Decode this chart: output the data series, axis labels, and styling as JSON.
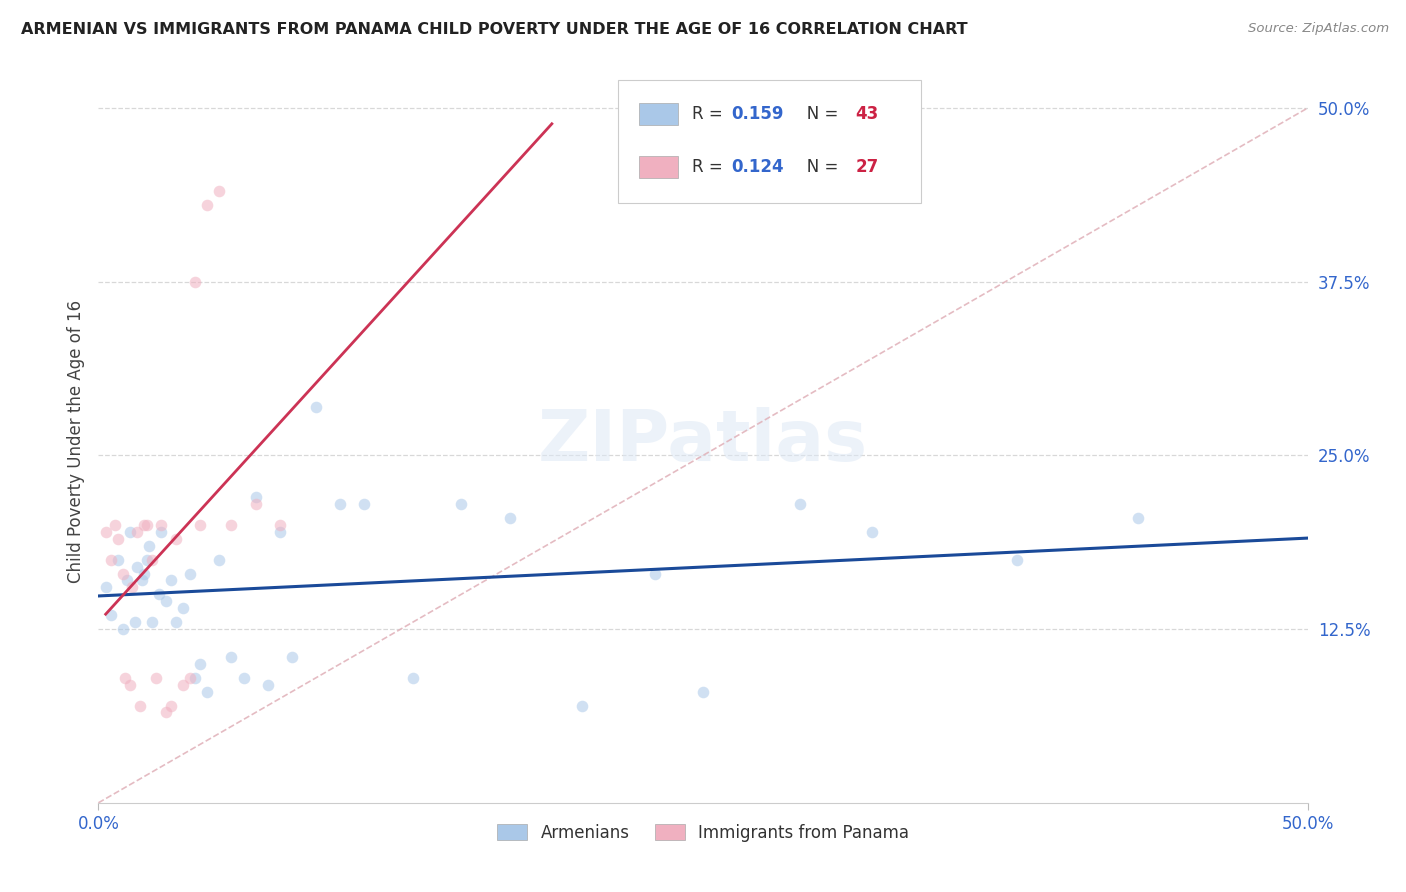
{
  "title": "ARMENIAN VS IMMIGRANTS FROM PANAMA CHILD POVERTY UNDER THE AGE OF 16 CORRELATION CHART",
  "source": "Source: ZipAtlas.com",
  "ylabel": "Child Poverty Under the Age of 16",
  "xlim": [
    0,
    0.5
  ],
  "ylim": [
    0,
    0.52
  ],
  "right_ytick_labels": [
    "12.5%",
    "25.0%",
    "37.5%",
    "50.0%"
  ],
  "right_ytick_vals": [
    0.125,
    0.25,
    0.375,
    0.5
  ],
  "xtick_labels": [
    "0.0%",
    "50.0%"
  ],
  "xtick_vals": [
    0.0,
    0.5
  ],
  "armenian_x": [
    0.003,
    0.005,
    0.008,
    0.01,
    0.012,
    0.013,
    0.015,
    0.016,
    0.018,
    0.019,
    0.02,
    0.021,
    0.022,
    0.025,
    0.026,
    0.028,
    0.03,
    0.032,
    0.035,
    0.038,
    0.04,
    0.042,
    0.045,
    0.05,
    0.055,
    0.06,
    0.065,
    0.07,
    0.075,
    0.08,
    0.09,
    0.1,
    0.11,
    0.13,
    0.15,
    0.17,
    0.2,
    0.23,
    0.25,
    0.29,
    0.32,
    0.38,
    0.43
  ],
  "armenian_y": [
    0.155,
    0.135,
    0.175,
    0.125,
    0.16,
    0.195,
    0.13,
    0.17,
    0.16,
    0.165,
    0.175,
    0.185,
    0.13,
    0.15,
    0.195,
    0.145,
    0.16,
    0.13,
    0.14,
    0.165,
    0.09,
    0.1,
    0.08,
    0.175,
    0.105,
    0.09,
    0.22,
    0.085,
    0.195,
    0.105,
    0.285,
    0.215,
    0.215,
    0.09,
    0.215,
    0.205,
    0.07,
    0.165,
    0.08,
    0.215,
    0.195,
    0.175,
    0.205
  ],
  "panama_x": [
    0.003,
    0.005,
    0.007,
    0.008,
    0.01,
    0.011,
    0.013,
    0.014,
    0.016,
    0.017,
    0.019,
    0.02,
    0.022,
    0.024,
    0.026,
    0.028,
    0.03,
    0.032,
    0.035,
    0.038,
    0.04,
    0.042,
    0.045,
    0.05,
    0.055,
    0.065,
    0.075
  ],
  "panama_y": [
    0.195,
    0.175,
    0.2,
    0.19,
    0.165,
    0.09,
    0.085,
    0.155,
    0.195,
    0.07,
    0.2,
    0.2,
    0.175,
    0.09,
    0.2,
    0.065,
    0.07,
    0.19,
    0.085,
    0.09,
    0.375,
    0.2,
    0.43,
    0.44,
    0.2,
    0.215,
    0.2
  ],
  "background_color": "#ffffff",
  "watermark_text": "ZIPatlas",
  "dot_size": 70,
  "dot_alpha": 0.55,
  "armenian_color": "#aac8e8",
  "panama_color": "#f0b0c0",
  "line_blue_color": "#1a4a99",
  "line_pink_color": "#cc3355",
  "diagonal_color": "#e0b0b8",
  "grid_color": "#d8d8d8",
  "r_color": "#3366cc",
  "n_color": "#cc2244"
}
